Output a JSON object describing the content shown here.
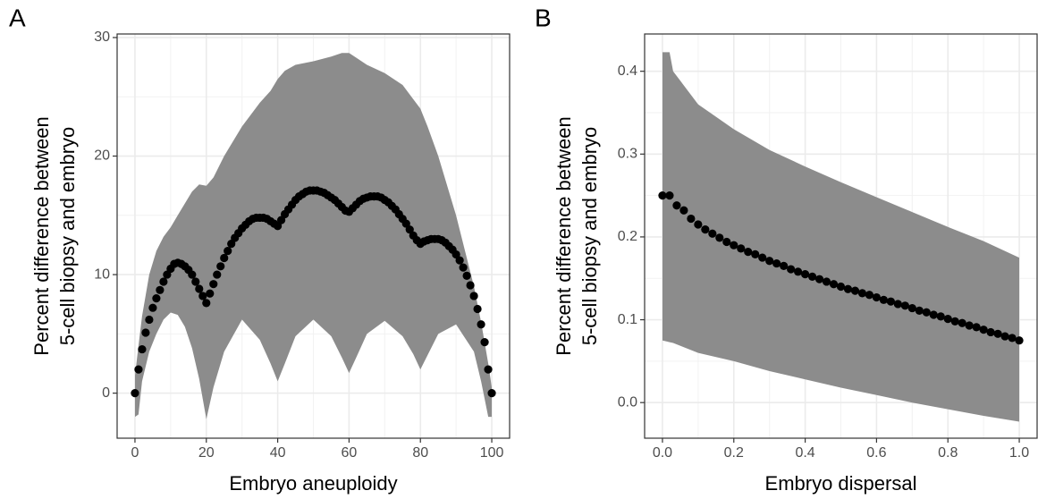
{
  "chart_data": [
    {
      "type": "scatter",
      "title": "A",
      "x_label": "Embryo aneuploidy",
      "y_label": [
        "Percent difference between",
        "5-cell biopsy and embryo"
      ],
      "xlim": [
        -5,
        105
      ],
      "ylim": [
        -3.8,
        30.3
      ],
      "xticks": [
        0,
        20,
        40,
        60,
        80,
        100
      ],
      "yticks": [
        0,
        10,
        20,
        30
      ],
      "grid": true,
      "color": "#000000",
      "band_color": "#8c8c8c",
      "x": [
        0,
        1,
        2,
        3,
        4,
        5,
        6,
        7,
        8,
        9,
        10,
        11,
        12,
        13,
        14,
        15,
        16,
        17,
        18,
        19,
        20,
        21,
        22,
        23,
        24,
        25,
        26,
        27,
        28,
        29,
        30,
        31,
        32,
        33,
        34,
        35,
        36,
        37,
        38,
        39,
        40,
        41,
        42,
        43,
        44,
        45,
        46,
        47,
        48,
        49,
        50,
        51,
        52,
        53,
        54,
        55,
        56,
        57,
        58,
        59,
        60,
        61,
        62,
        63,
        64,
        65,
        66,
        67,
        68,
        69,
        70,
        71,
        72,
        73,
        74,
        75,
        76,
        77,
        78,
        79,
        80,
        81,
        82,
        83,
        84,
        85,
        86,
        87,
        88,
        89,
        90,
        91,
        92,
        93,
        94,
        95,
        96,
        97,
        98,
        99,
        100
      ],
      "values": [
        0,
        2,
        3.7,
        5.1,
        6.2,
        7.2,
        8,
        8.7,
        9.4,
        10,
        10.5,
        10.9,
        11,
        10.9,
        10.7,
        10.4,
        10,
        9.4,
        8.8,
        8.2,
        7.6,
        8.4,
        9.2,
        10,
        10.7,
        11.4,
        12,
        12.6,
        13.1,
        13.5,
        13.9,
        14.2,
        14.5,
        14.7,
        14.8,
        14.8,
        14.8,
        14.7,
        14.5,
        14.3,
        14.1,
        14.6,
        15.1,
        15.5,
        15.9,
        16.3,
        16.6,
        16.8,
        17,
        17.1,
        17.1,
        17.1,
        17,
        16.9,
        16.7,
        16.5,
        16.3,
        16,
        15.7,
        15.4,
        15.3,
        15.6,
        15.9,
        16.2,
        16.4,
        16.5,
        16.6,
        16.6,
        16.6,
        16.5,
        16.3,
        16.1,
        15.8,
        15.5,
        15.1,
        14.7,
        14.3,
        13.8,
        13.3,
        12.9,
        12.6,
        12.8,
        12.9,
        13,
        13,
        13,
        12.9,
        12.7,
        12.4,
        12.1,
        11.7,
        11.2,
        10.6,
        9.9,
        9.1,
        8.2,
        7.1,
        5.8,
        4.3,
        2,
        0
      ],
      "band": {
        "x": [
          0,
          1,
          2,
          4,
          6,
          8,
          10,
          12,
          14,
          16,
          18,
          20,
          22,
          25,
          30,
          35,
          38,
          40,
          42,
          45,
          50,
          55,
          58,
          60,
          62,
          65,
          70,
          75,
          78,
          80,
          82,
          85,
          90,
          95,
          97,
          99,
          100
        ],
        "lower": [
          -2,
          -1.8,
          1,
          3.5,
          5,
          6.2,
          6.8,
          6.6,
          5.6,
          3.8,
          1.2,
          -2.2,
          0.5,
          3.5,
          6.2,
          4.5,
          2.5,
          1,
          2.5,
          4.8,
          6.2,
          4.8,
          3,
          1.7,
          3,
          5,
          6.1,
          4.8,
          3.3,
          2,
          3.2,
          5,
          5.8,
          3.5,
          1,
          -2,
          -2
        ],
        "upper": [
          1.5,
          4,
          6.5,
          10,
          12,
          13.2,
          14,
          15,
          16,
          17,
          17.6,
          17.5,
          18.2,
          20,
          22.5,
          24.5,
          25.5,
          26.5,
          27.2,
          27.7,
          28,
          28.4,
          28.7,
          28.7,
          28.3,
          27.7,
          27,
          26,
          24.8,
          24,
          22.5,
          20,
          15,
          9,
          6,
          2.5,
          0.5
        ]
      }
    },
    {
      "type": "scatter",
      "title": "B",
      "x_label": "Embryo dispersal",
      "y_label": [
        "Percent difference between",
        "5-cell biopsy and embryo"
      ],
      "xlim": [
        -0.05,
        1.05
      ],
      "ylim": [
        -0.043,
        0.445
      ],
      "xticks": [
        {
          "value": 0,
          "label": "0.0"
        },
        0.2,
        0.4,
        0.6,
        0.8,
        {
          "value": 1,
          "label": "1.0"
        }
      ],
      "yticks": [
        {
          "value": 0,
          "label": "0.0"
        },
        0.1,
        0.2,
        0.3,
        0.4
      ],
      "grid": true,
      "color": "#000000",
      "band_color": "#8c8c8c",
      "x": [
        0,
        0.02,
        0.04,
        0.06,
        0.08,
        0.1,
        0.12,
        0.14,
        0.16,
        0.18,
        0.2,
        0.22,
        0.24,
        0.26,
        0.28,
        0.3,
        0.32,
        0.34,
        0.36,
        0.38,
        0.4,
        0.42,
        0.44,
        0.46,
        0.48,
        0.5,
        0.52,
        0.54,
        0.56,
        0.58,
        0.6,
        0.62,
        0.64,
        0.66,
        0.68,
        0.7,
        0.72,
        0.74,
        0.76,
        0.78,
        0.8,
        0.82,
        0.84,
        0.86,
        0.88,
        0.9,
        0.92,
        0.94,
        0.96,
        0.98,
        1
      ],
      "values": [
        0.25,
        0.25,
        0.238,
        0.232,
        0.222,
        0.215,
        0.209,
        0.204,
        0.199,
        0.194,
        0.19,
        0.186,
        0.182,
        0.179,
        0.175,
        0.171,
        0.168,
        0.165,
        0.161,
        0.158,
        0.155,
        0.152,
        0.149,
        0.146,
        0.143,
        0.14,
        0.137,
        0.135,
        0.132,
        0.13,
        0.127,
        0.124,
        0.122,
        0.119,
        0.117,
        0.114,
        0.111,
        0.109,
        0.106,
        0.104,
        0.101,
        0.098,
        0.096,
        0.093,
        0.091,
        0.088,
        0.085,
        0.083,
        0.08,
        0.078,
        0.075
      ],
      "band": {
        "x": [
          0,
          0.02,
          0.03,
          0.1,
          0.2,
          0.3,
          0.4,
          0.5,
          0.6,
          0.7,
          0.8,
          0.9,
          1
        ],
        "lower": [
          0.075,
          0.073,
          0.072,
          0.06,
          0.05,
          0.038,
          0.028,
          0.018,
          0.009,
          0,
          -0.008,
          -0.016,
          -0.023
        ],
        "upper": [
          0.423,
          0.423,
          0.4,
          0.36,
          0.33,
          0.305,
          0.285,
          0.266,
          0.248,
          0.23,
          0.212,
          0.195,
          0.175
        ]
      }
    }
  ]
}
